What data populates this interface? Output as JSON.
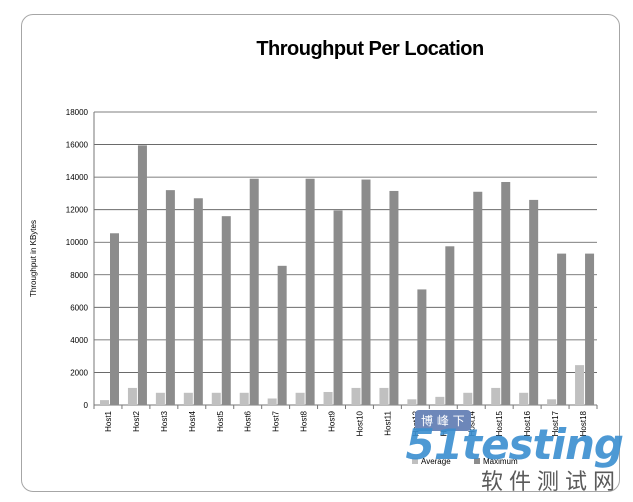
{
  "chart_data": {
    "type": "bar",
    "title": "Throughput Per Location",
    "xlabel": "",
    "ylabel": "Throughput in KBytes",
    "ylim": [
      0,
      18000
    ],
    "yticks": [
      0,
      2000,
      4000,
      6000,
      8000,
      10000,
      12000,
      14000,
      16000,
      18000
    ],
    "grid": true,
    "legend_position": "bottom-right",
    "categories": [
      "Host1",
      "Host2",
      "Host3",
      "Host4",
      "Host5",
      "Host6",
      "Host7",
      "Host8",
      "Host9",
      "Host10",
      "Host11",
      "Host12",
      "Host13",
      "Host14",
      "Host15",
      "Host16",
      "Host17",
      "Host18"
    ],
    "series": [
      {
        "name": "Average",
        "color": "#c0c0c0",
        "values": [
          300,
          1050,
          750,
          750,
          750,
          750,
          400,
          750,
          800,
          1050,
          1050,
          350,
          500,
          750,
          1050,
          750,
          350,
          2450
        ]
      },
      {
        "name": "Maximum",
        "color": "#8c8c8c",
        "values": [
          10550,
          15950,
          13200,
          12700,
          11600,
          13900,
          8550,
          13900,
          11950,
          13850,
          13150,
          7100,
          9750,
          13100,
          13700,
          12600,
          9300,
          9300
        ]
      }
    ]
  },
  "watermark": {
    "badge": "博  峰  下",
    "logo": "51testing",
    "sub": "软件测试网"
  }
}
